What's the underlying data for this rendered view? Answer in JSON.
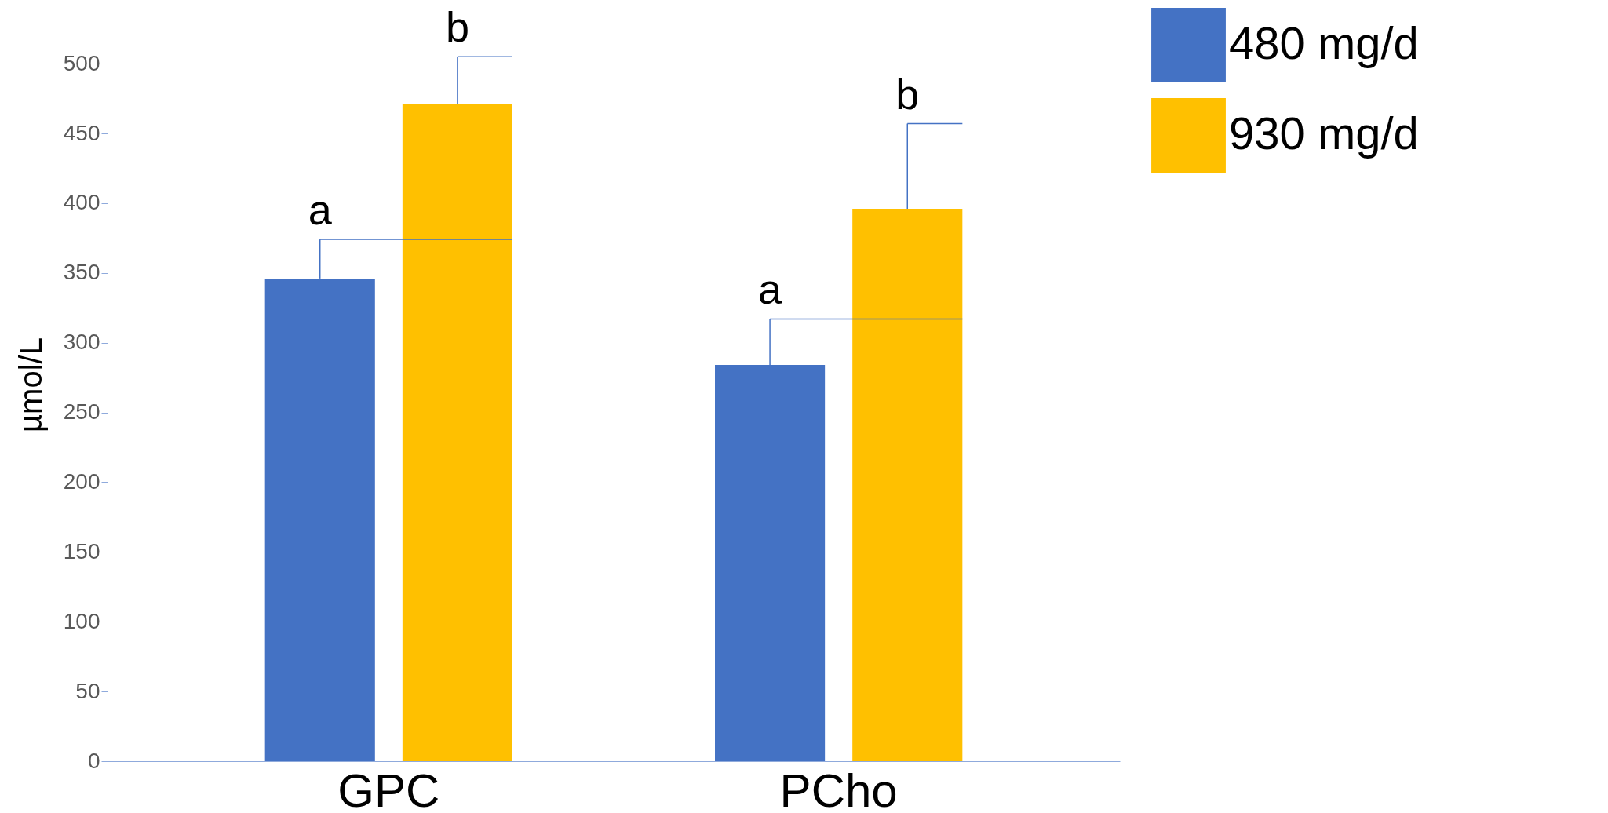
{
  "chart_data": {
    "type": "bar",
    "ylabel": "µmol/L",
    "categories": [
      "GPC",
      "PCho"
    ],
    "series": [
      {
        "name": "480 mg/d",
        "color": "#4472c4",
        "values": [
          346,
          284
        ],
        "errors": [
          [
            346,
            374
          ],
          [
            284,
            317
          ]
        ],
        "value_labels": [
          "a",
          "a"
        ]
      },
      {
        "name": "930 mg/d",
        "color": "#ffc000",
        "values": [
          471,
          396
        ],
        "errors": [
          [
            471,
            505
          ],
          [
            396,
            457
          ]
        ],
        "value_labels": [
          "b",
          "b"
        ]
      }
    ],
    "ylim": [
      0,
      540
    ],
    "yticks": [
      0,
      50,
      100,
      150,
      200,
      250,
      300,
      350,
      400,
      450,
      500
    ],
    "legend": "right"
  }
}
